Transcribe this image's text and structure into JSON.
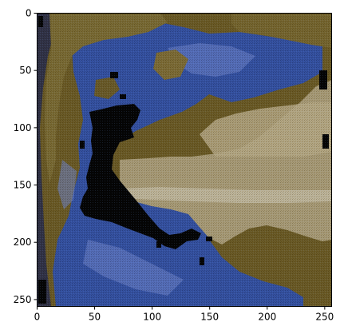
{
  "chart_data": {
    "type": "image",
    "title": "",
    "xlabel": "",
    "ylabel": "",
    "xlim": [
      0,
      256
    ],
    "ylim": [
      256,
      0
    ],
    "xticks": [
      0,
      50,
      100,
      150,
      200,
      250
    ],
    "yticks": [
      0,
      50,
      100,
      150,
      200,
      250
    ],
    "x_tick_labels": [
      "0",
      "50",
      "100",
      "150",
      "200",
      "250"
    ],
    "y_tick_labels": [
      "0",
      "50",
      "100",
      "150",
      "200",
      "250"
    ],
    "grid": false,
    "colors": {
      "olive_background": "#6b5a24",
      "tan_plume": "#a89a74",
      "deep_blue": "#2b3f8f",
      "mid_blue": "#3f5fb8",
      "light_blue": "#6f84c9",
      "black": "#050505",
      "dark_olive": "#3f3516"
    }
  }
}
